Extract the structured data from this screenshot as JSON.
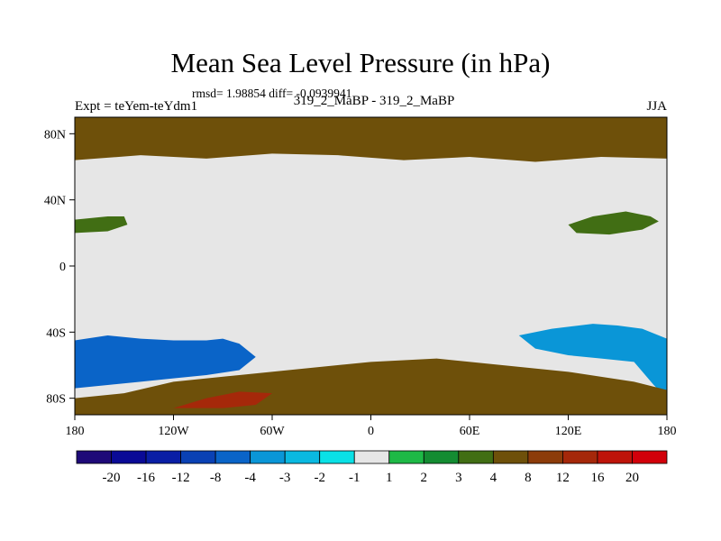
{
  "chart_data": {
    "type": "heatmap",
    "title": "Mean Sea Level Pressure (in hPa)",
    "stats_text": "rmsd= 1.98854 diff= -0.0939941",
    "left_label": "Expt = teYem-teYdm1",
    "center_label": "319_2_MaBP - 319_2_MaBP",
    "right_label": "JJA",
    "x_ticks": [
      {
        "value": -180,
        "label": "180"
      },
      {
        "value": -120,
        "label": "120W"
      },
      {
        "value": -60,
        "label": "60W"
      },
      {
        "value": 0,
        "label": "0"
      },
      {
        "value": 60,
        "label": "60E"
      },
      {
        "value": 120,
        "label": "120E"
      },
      {
        "value": 180,
        "label": "180"
      }
    ],
    "y_ticks": [
      {
        "value": 80,
        "label": "80N"
      },
      {
        "value": 40,
        "label": "40N"
      },
      {
        "value": 0,
        "label": "0"
      },
      {
        "value": -40,
        "label": "40S"
      },
      {
        "value": -80,
        "label": "80S"
      }
    ],
    "xlim": [
      -180,
      180
    ],
    "ylim": [
      -90,
      90
    ],
    "colorbar": {
      "boundaries": [
        "-20",
        "-16",
        "-12",
        "-8",
        "-4",
        "-3",
        "-2",
        "-1",
        "1",
        "2",
        "3",
        "4",
        "8",
        "12",
        "16",
        "20"
      ],
      "colors": [
        "#1e0a78",
        "#0a0a96",
        "#0a1ea5",
        "#0a41b4",
        "#0a64c8",
        "#0a96d7",
        "#0ab9e1",
        "#0ae1e6",
        "#e6e6e6",
        "#1eb946",
        "#148c32",
        "#416e14",
        "#6e500a",
        "#8c3c0a",
        "#a5280a",
        "#be140a",
        "#d2000a"
      ]
    },
    "regions": [
      {
        "name": "south-deep-low",
        "level": -8,
        "points": [
          [
            -180,
            -45
          ],
          [
            -160,
            -42
          ],
          [
            -140,
            -44
          ],
          [
            -120,
            -45
          ],
          [
            -100,
            -45
          ],
          [
            -90,
            -44
          ],
          [
            -80,
            -47
          ],
          [
            -70,
            -55
          ],
          [
            -80,
            -63
          ],
          [
            -100,
            -66
          ],
          [
            -120,
            -68
          ],
          [
            -140,
            -70
          ],
          [
            -160,
            -72
          ],
          [
            -180,
            -74
          ]
        ]
      },
      {
        "name": "south-low-east",
        "level": -4,
        "points": [
          [
            90,
            -42
          ],
          [
            110,
            -38
          ],
          [
            135,
            -35
          ],
          [
            150,
            -36
          ],
          [
            165,
            -38
          ],
          [
            180,
            -44
          ],
          [
            180,
            -80
          ],
          [
            172,
            -72
          ],
          [
            160,
            -58
          ],
          [
            140,
            -56
          ],
          [
            120,
            -54
          ],
          [
            100,
            -50
          ]
        ]
      },
      {
        "name": "pacific-high",
        "level": 3,
        "points": [
          [
            120,
            25
          ],
          [
            135,
            30
          ],
          [
            155,
            33
          ],
          [
            170,
            30
          ],
          [
            175,
            27
          ],
          [
            165,
            22
          ],
          [
            145,
            19
          ],
          [
            125,
            20
          ]
        ]
      },
      {
        "name": "atlantic-high",
        "level": 3,
        "points": [
          [
            -180,
            28
          ],
          [
            -160,
            30
          ],
          [
            -150,
            30
          ],
          [
            -148,
            25
          ],
          [
            -160,
            21
          ],
          [
            -180,
            20
          ]
        ]
      },
      {
        "name": "arctic-high",
        "level": 4,
        "points": [
          [
            -180,
            90
          ],
          [
            180,
            90
          ],
          [
            180,
            65
          ],
          [
            140,
            66
          ],
          [
            100,
            63
          ],
          [
            60,
            66
          ],
          [
            20,
            64
          ],
          [
            -20,
            67
          ],
          [
            -60,
            68
          ],
          [
            -100,
            65
          ],
          [
            -140,
            67
          ],
          [
            -180,
            64
          ]
        ]
      },
      {
        "name": "antarctic-high",
        "level": 4,
        "points": [
          [
            -180,
            -80
          ],
          [
            -150,
            -77
          ],
          [
            -120,
            -70
          ],
          [
            -80,
            -66
          ],
          [
            -40,
            -62
          ],
          [
            0,
            -58
          ],
          [
            40,
            -56
          ],
          [
            80,
            -60
          ],
          [
            120,
            -64
          ],
          [
            160,
            -70
          ],
          [
            180,
            -75
          ],
          [
            180,
            -90
          ],
          [
            -180,
            -90
          ]
        ]
      },
      {
        "name": "antarctic-strong-high",
        "level": 12,
        "points": [
          [
            -120,
            -86
          ],
          [
            -100,
            -80
          ],
          [
            -80,
            -76
          ],
          [
            -60,
            -77
          ],
          [
            -70,
            -84
          ],
          [
            -90,
            -86
          ]
        ]
      }
    ]
  }
}
